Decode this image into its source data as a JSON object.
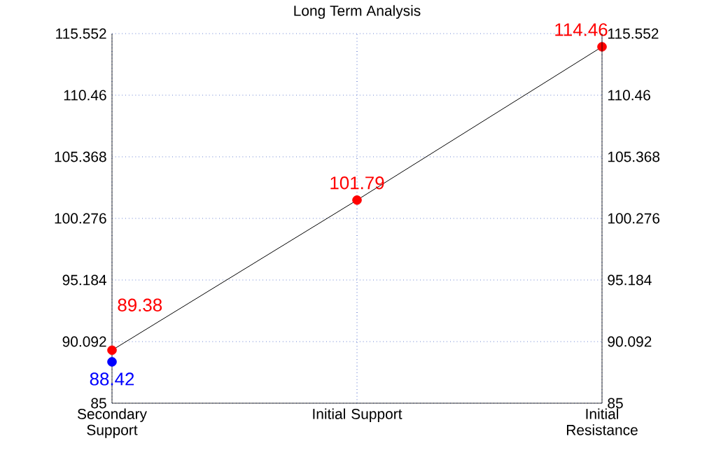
{
  "chart_data": {
    "type": "line",
    "title": "Long Term Analysis",
    "categories": [
      "Secondary Support",
      "Initial Support",
      "Initial Resistance"
    ],
    "ylim": [
      85,
      115.552
    ],
    "yticks": [
      85,
      90.092,
      95.184,
      100.276,
      105.368,
      110.46,
      115.552
    ],
    "y2lim": [
      85,
      115.552
    ],
    "y2ticks": [
      85,
      90.092,
      95.184,
      100.276,
      105.368,
      110.46,
      115.552
    ],
    "grid": true,
    "data_labels": true,
    "line_style": "solid",
    "series": [
      {
        "color": "#000000",
        "colors": [
          "#ff0000",
          "#ff0000",
          "#ff0000"
        ],
        "marker": "circle",
        "values": [
          89.38,
          101.79,
          114.46
        ]
      },
      {
        "type": "scatter",
        "color": "#0000ff",
        "marker": "circle",
        "values": [
          88.42,
          null,
          null
        ]
      }
    ]
  }
}
